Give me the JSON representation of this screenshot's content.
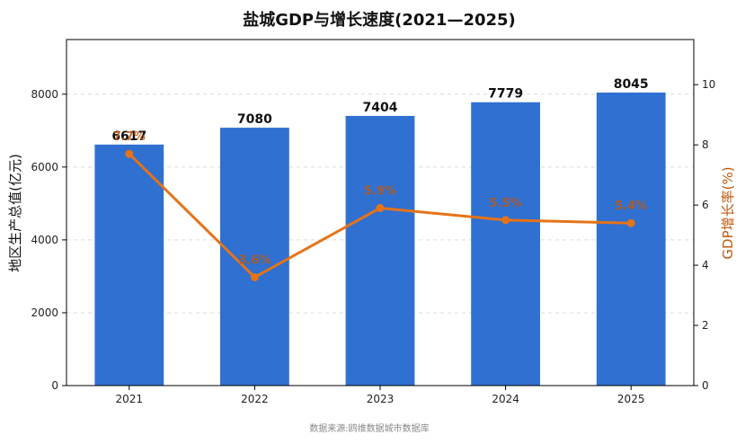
{
  "chart_data": {
    "type": "bar+line",
    "title": "盐城GDP与增长速度(2021—2025)",
    "categories": [
      "2021",
      "2022",
      "2023",
      "2024",
      "2025"
    ],
    "series": [
      {
        "name": "地区生产总值(亿元)",
        "type": "bar",
        "axis": "left",
        "values": [
          6617,
          7080,
          7404,
          7779,
          8045
        ],
        "labels": [
          "6617",
          "7080",
          "7404",
          "7779",
          "8045"
        ],
        "color": "#3070d0"
      },
      {
        "name": "GDP增长率(%)",
        "type": "line",
        "axis": "right",
        "values": [
          7.7,
          3.6,
          5.9,
          5.5,
          5.4
        ],
        "labels": [
          "7.7%",
          "3.6%",
          "5.9%",
          "5.5%",
          "5.4%"
        ],
        "color": "#e57318"
      }
    ],
    "ylabel_left": "地区生产总值(亿元)",
    "ylabel_right": "GDP增长率(%)",
    "ylim_left": [
      0,
      9500
    ],
    "ylim_right": [
      0,
      11.5
    ],
    "yticks_left": [
      "0",
      "2000",
      "4000",
      "6000",
      "8000"
    ],
    "yticks_right": [
      "0",
      "2",
      "4",
      "6",
      "8",
      "10"
    ],
    "grid": true,
    "source_note": "数据来源:鸥维数据城市数据库"
  }
}
